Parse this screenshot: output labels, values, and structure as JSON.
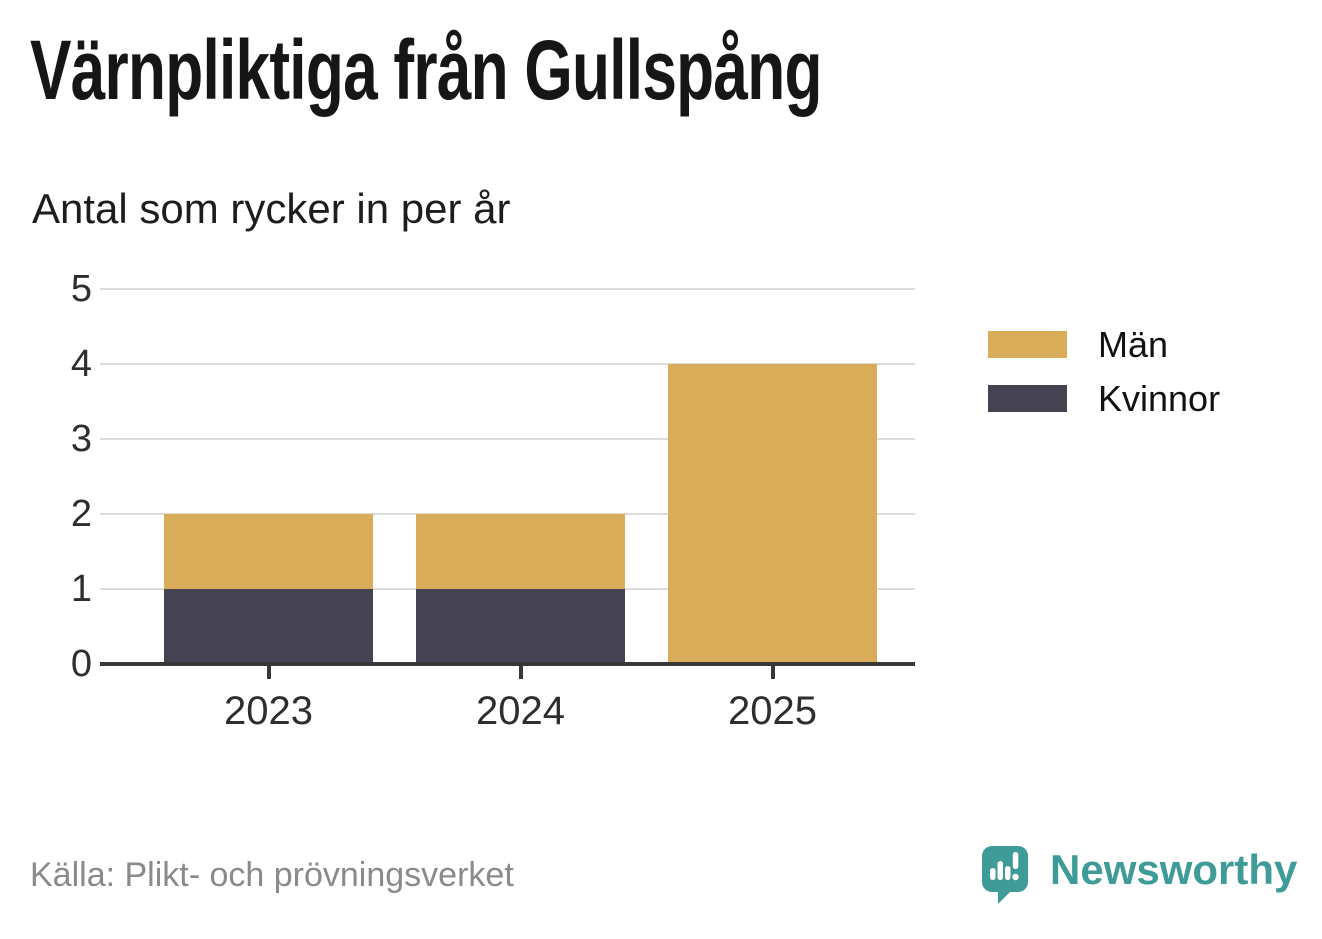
{
  "chart_data": {
    "type": "bar",
    "stacked": true,
    "title": "Värnpliktiga från Gullspång",
    "subtitle": "Antal som rycker in per år",
    "categories": [
      "2023",
      "2024",
      "2025"
    ],
    "series": [
      {
        "name": "Män",
        "color": "#d9ac5a",
        "values": [
          1,
          1,
          4
        ]
      },
      {
        "name": "Kvinnor",
        "color": "#454352",
        "values": [
          1,
          1,
          0
        ]
      }
    ],
    "stack_order_bottom_to_top": [
      "Kvinnor",
      "Män"
    ],
    "xlabel": "",
    "ylabel": "",
    "ylim": [
      0,
      5
    ],
    "yticks": [
      0,
      1,
      2,
      3,
      4,
      5
    ],
    "grid": true,
    "legend_position": "right",
    "gridline_color": "#dcdcdc",
    "axis_color": "#383838"
  },
  "footer": {
    "source": "Källa: Plikt- och prövningsverket",
    "brand": "Newsworthy",
    "brand_color": "#3e9b97"
  },
  "icons": {
    "logo": "speech-bubble-bar-chart-icon"
  }
}
